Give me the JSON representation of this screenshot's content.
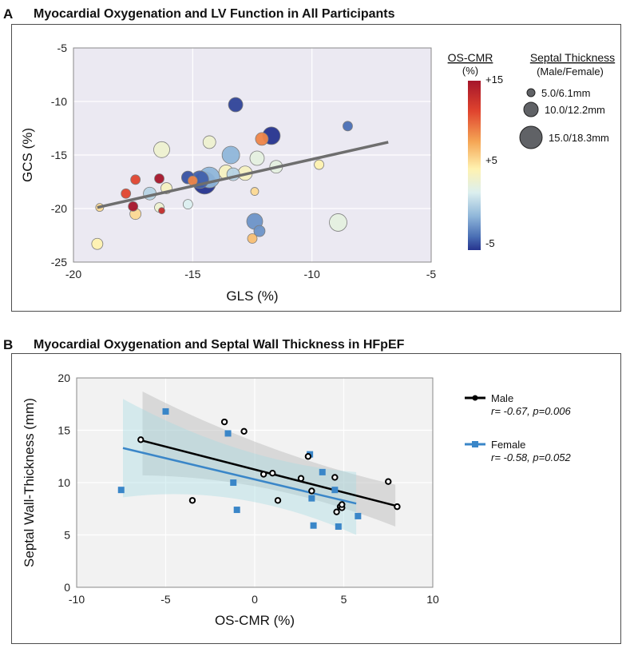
{
  "figure": {
    "panel_a_label": "A",
    "panel_b_label": "B"
  },
  "chart_data": [
    {
      "type": "scatter",
      "title": "Myocardial Oxygenation and LV Function in All Participants",
      "xlabel": "GLS (%)",
      "ylabel": "GCS (%)",
      "xlim": [
        -20,
        -5
      ],
      "ylim": [
        -25,
        -5
      ],
      "xticks": [
        "-20",
        "-15",
        "-10",
        "-5"
      ],
      "yticks": [
        "-5",
        "-10",
        "-15",
        "-20",
        "-25"
      ],
      "color_legend": {
        "title": "OS-CMR",
        "unit": "(%)",
        "ticks": [
          "+15",
          "+5",
          "-5"
        ],
        "range": [
          -5,
          15
        ]
      },
      "size_legend": {
        "title": "Septal Thickness",
        "subtitle": "(Male/Female)",
        "entries": [
          "5.0/6.1mm",
          "10.0/12.2mm",
          "15.0/18.3mm"
        ],
        "sizes_mm": [
          5.0,
          10.0,
          15.0
        ]
      },
      "trendline": {
        "x": [
          -19,
          -6.8
        ],
        "y": [
          -19.9,
          -13.8
        ]
      },
      "points": [
        {
          "x": -13.2,
          "y": -10.3,
          "os": -4.5,
          "size": 9
        },
        {
          "x": -8.5,
          "y": -12.3,
          "os": -3,
          "size": 6
        },
        {
          "x": -11.7,
          "y": -13.2,
          "os": -5,
          "size": 11
        },
        {
          "x": -12.1,
          "y": -13.5,
          "os": 9,
          "size": 8
        },
        {
          "x": -16.3,
          "y": -14.5,
          "os": 3,
          "size": 10
        },
        {
          "x": -14.3,
          "y": -13.8,
          "os": 3,
          "size": 8
        },
        {
          "x": -13.4,
          "y": -15.0,
          "os": -1,
          "size": 11
        },
        {
          "x": -12.3,
          "y": -15.3,
          "os": 2,
          "size": 9
        },
        {
          "x": -11.5,
          "y": -16.1,
          "os": 2,
          "size": 8
        },
        {
          "x": -9.7,
          "y": -15.9,
          "os": 5,
          "size": 6
        },
        {
          "x": -13.6,
          "y": -16.6,
          "os": 4,
          "size": 9
        },
        {
          "x": -12.8,
          "y": -16.7,
          "os": 4,
          "size": 9
        },
        {
          "x": -13.3,
          "y": -16.8,
          "os": 0,
          "size": 8
        },
        {
          "x": -14.7,
          "y": -17.3,
          "os": -3.5,
          "size": 11
        },
        {
          "x": -14.3,
          "y": -17.1,
          "os": -1,
          "size": 13
        },
        {
          "x": -14.5,
          "y": -17.6,
          "os": -5,
          "size": 14
        },
        {
          "x": -15.2,
          "y": -17.1,
          "os": -4,
          "size": 8
        },
        {
          "x": -16.1,
          "y": -18.1,
          "os": 4,
          "size": 7
        },
        {
          "x": -16.8,
          "y": -18.6,
          "os": 0,
          "size": 8
        },
        {
          "x": -17.8,
          "y": -18.6,
          "os": 11,
          "size": 6
        },
        {
          "x": -17.4,
          "y": -17.3,
          "os": 11,
          "size": 6
        },
        {
          "x": -16.4,
          "y": -17.2,
          "os": 15,
          "size": 6
        },
        {
          "x": -15.0,
          "y": -17.4,
          "os": 9,
          "size": 6
        },
        {
          "x": -17.5,
          "y": -19.8,
          "os": 15,
          "size": 6
        },
        {
          "x": -17.4,
          "y": -20.5,
          "os": 6,
          "size": 7
        },
        {
          "x": -16.3,
          "y": -20.2,
          "os": 13,
          "size": 4
        },
        {
          "x": -15.2,
          "y": -19.6,
          "os": 1,
          "size": 6
        },
        {
          "x": -18.9,
          "y": -19.9,
          "os": 6,
          "size": 5
        },
        {
          "x": -16.4,
          "y": -19.9,
          "os": 3,
          "size": 6
        },
        {
          "x": -12.4,
          "y": -18.4,
          "os": 6,
          "size": 5
        },
        {
          "x": -12.4,
          "y": -21.2,
          "os": -2,
          "size": 10
        },
        {
          "x": -12.2,
          "y": -22.1,
          "os": -2,
          "size": 7
        },
        {
          "x": -12.5,
          "y": -22.8,
          "os": 7,
          "size": 6
        },
        {
          "x": -8.9,
          "y": -21.3,
          "os": 2,
          "size": 11
        },
        {
          "x": -19.0,
          "y": -23.3,
          "os": 5,
          "size": 7
        }
      ]
    },
    {
      "type": "scatter",
      "title": "Myocardial Oxygenation and Septal Wall Thickness in HFpEF",
      "xlabel": "OS-CMR (%)",
      "ylabel": "Septal Wall-Thickness (mm)",
      "xlim": [
        -10,
        10
      ],
      "ylim": [
        0,
        20
      ],
      "xticks": [
        "-10",
        "-5",
        "0",
        "5",
        "10"
      ],
      "yticks": [
        "0",
        "5",
        "10",
        "15",
        "20"
      ],
      "series": [
        {
          "name": "Male",
          "stats": "r= -0.67, p=0.006",
          "color": "#000000",
          "fit": {
            "x": [
              -6.3,
              7.9
            ],
            "y": [
              14.0,
              7.8
            ]
          },
          "band_upper": [
            18.7,
            13.4,
            9.8
          ],
          "band_lower": [
            10.7,
            9.4,
            5.8
          ],
          "x": [
            -6.4,
            -1.7,
            -0.6,
            0.5,
            1,
            2.6,
            3,
            3.2,
            4.5,
            4.6,
            4.8,
            4.9,
            4.9,
            7.5,
            8,
            -3.5,
            1.3
          ],
          "y": [
            14.1,
            15.8,
            14.9,
            10.8,
            10.9,
            10.4,
            12.5,
            9.2,
            10.5,
            7.2,
            7.7,
            7.6,
            7.9,
            10.1,
            7.7,
            8.3,
            8.3
          ]
        },
        {
          "name": "Female",
          "stats": "r= -0.58, p=0.052",
          "color": "#3a86c8",
          "fit": {
            "x": [
              -7.4,
              5.7
            ],
            "y": [
              13.3,
              8.0
            ]
          },
          "band_upper": [
            18.0,
            13.2,
            11.0
          ],
          "band_lower": [
            8.6,
            8.4,
            5.0
          ],
          "x": [
            -7.5,
            -5,
            -1.5,
            -1.2,
            -1.0,
            3.1,
            3.2,
            3.3,
            3.8,
            4.5,
            4.7,
            5.8
          ],
          "y": [
            9.3,
            16.8,
            14.7,
            10.0,
            7.4,
            12.7,
            8.5,
            5.9,
            11.0,
            9.3,
            5.8,
            6.8
          ]
        }
      ]
    }
  ]
}
